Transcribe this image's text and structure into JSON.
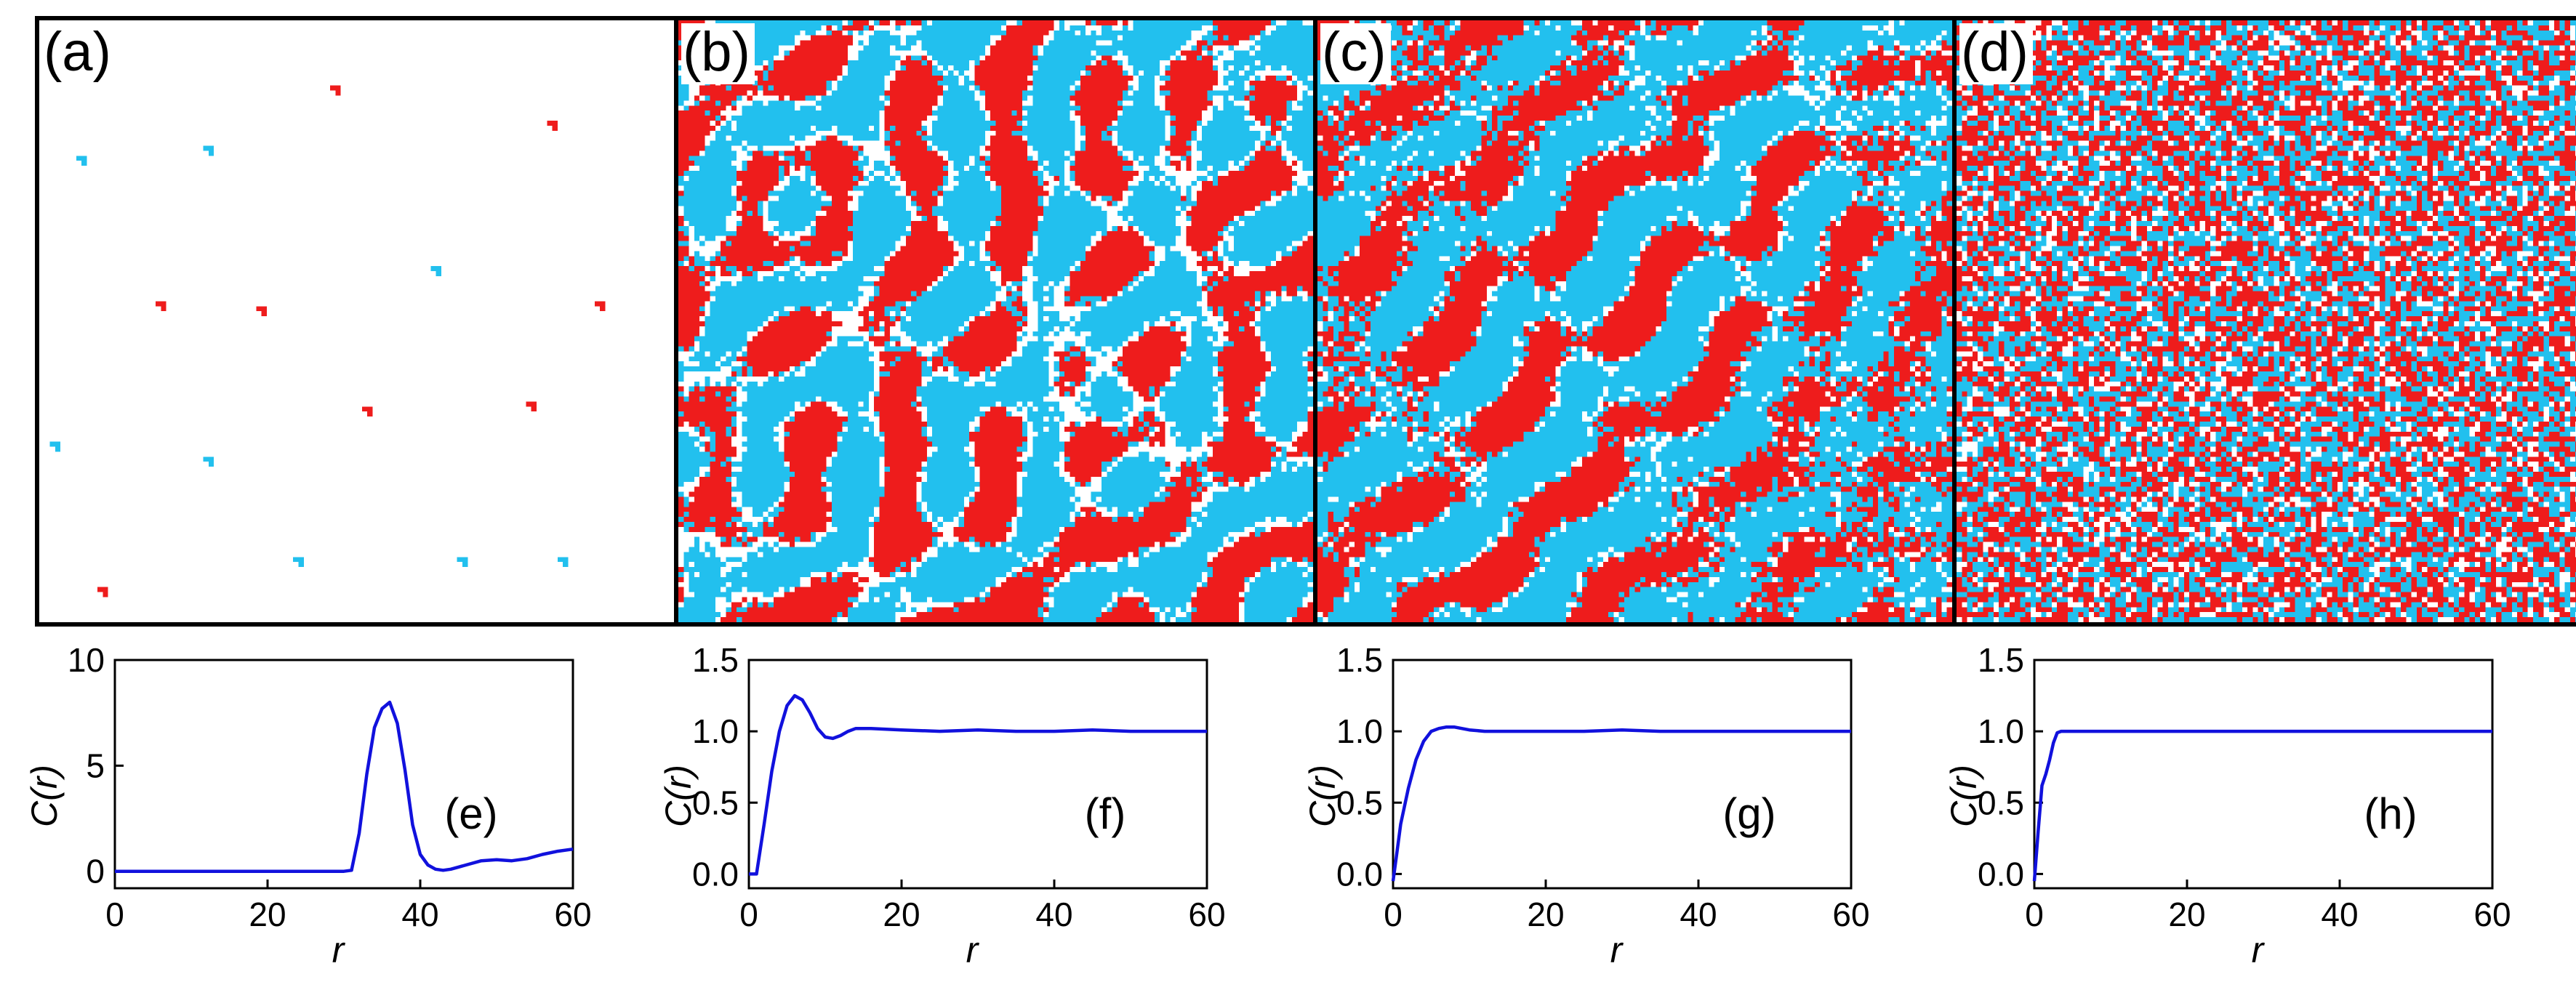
{
  "colors": {
    "red": "#ee1c1c",
    "cyan": "#22c0ee",
    "curve": "#1111dd",
    "frame": "#000000"
  },
  "panels": [
    {
      "label": "(a)",
      "pattern": "sparse"
    },
    {
      "label": "(b)",
      "pattern": "labyrinth"
    },
    {
      "label": "(c)",
      "pattern": "mixed"
    },
    {
      "label": "(d)",
      "pattern": "random"
    }
  ],
  "chart_data": [
    {
      "type": "line",
      "label": "(e)",
      "xlabel": "r",
      "ylabel": "C(r)",
      "xlim": [
        0,
        60
      ],
      "ylim": [
        -0.8,
        10
      ],
      "xticks": [
        "0",
        "20",
        "40",
        "60"
      ],
      "yticks": [
        "0",
        "5",
        "10"
      ],
      "x": [
        0,
        30,
        31,
        32,
        33,
        34,
        35,
        36,
        37,
        38,
        39,
        40,
        41,
        42,
        43,
        44,
        45,
        46,
        48,
        50,
        52,
        54,
        56,
        58,
        60
      ],
      "y": [
        0,
        0,
        0.05,
        1.8,
        4.6,
        6.8,
        7.7,
        8.0,
        7.0,
        4.8,
        2.2,
        0.8,
        0.3,
        0.1,
        0.05,
        0.1,
        0.2,
        0.3,
        0.5,
        0.55,
        0.5,
        0.6,
        0.8,
        0.95,
        1.05
      ]
    },
    {
      "type": "line",
      "label": "(f)",
      "xlabel": "r",
      "ylabel": "C(r)",
      "xlim": [
        0,
        60
      ],
      "ylim": [
        -0.1,
        1.5
      ],
      "xticks": [
        "0",
        "20",
        "40",
        "60"
      ],
      "yticks": [
        "0.0",
        "0.5",
        "1.0",
        "1.5"
      ],
      "x": [
        0,
        1,
        2,
        3,
        4,
        5,
        6,
        7,
        8,
        9,
        10,
        11,
        12,
        13,
        14,
        16,
        20,
        25,
        30,
        35,
        40,
        45,
        50,
        55,
        60
      ],
      "y": [
        0,
        0,
        0.35,
        0.72,
        1.0,
        1.18,
        1.25,
        1.22,
        1.13,
        1.02,
        0.96,
        0.95,
        0.97,
        1.0,
        1.02,
        1.02,
        1.01,
        1.0,
        1.01,
        1.0,
        1.0,
        1.01,
        1.0,
        1.0,
        1.0
      ]
    },
    {
      "type": "line",
      "label": "(g)",
      "xlabel": "r",
      "ylabel": "C(r)",
      "xlim": [
        0,
        60
      ],
      "ylim": [
        -0.1,
        1.5
      ],
      "xticks": [
        "0",
        "20",
        "40",
        "60"
      ],
      "yticks": [
        "0.0",
        "0.5",
        "1.0",
        "1.5"
      ],
      "x": [
        0,
        0.5,
        1,
        2,
        3,
        4,
        5,
        6,
        7,
        8,
        9,
        10,
        12,
        15,
        20,
        25,
        30,
        35,
        40,
        45,
        50,
        55,
        60
      ],
      "y": [
        -0.05,
        0.15,
        0.35,
        0.6,
        0.8,
        0.93,
        1.0,
        1.02,
        1.03,
        1.03,
        1.02,
        1.01,
        1.0,
        1.0,
        1.0,
        1.0,
        1.01,
        1.0,
        1.0,
        1.0,
        1.0,
        1.0,
        1.0
      ]
    },
    {
      "type": "line",
      "label": "(h)",
      "xlabel": "r",
      "ylabel": "C(r)",
      "xlim": [
        0,
        60
      ],
      "ylim": [
        -0.1,
        1.5
      ],
      "xticks": [
        "0",
        "20",
        "40",
        "60"
      ],
      "yticks": [
        "0.0",
        "0.5",
        "1.0",
        "1.5"
      ],
      "x": [
        0,
        0.5,
        1,
        1.5,
        2,
        2.5,
        3,
        3.5,
        4,
        5,
        6,
        8,
        10,
        15,
        20,
        25,
        30,
        35,
        40,
        45,
        50,
        55,
        60
      ],
      "y": [
        -0.05,
        0.3,
        0.62,
        0.7,
        0.8,
        0.92,
        0.99,
        1.0,
        1.0,
        1.0,
        1.0,
        1.0,
        1.0,
        1.0,
        1.0,
        1.0,
        1.0,
        1.0,
        1.0,
        1.0,
        1.0,
        1.0,
        1.0
      ]
    }
  ]
}
